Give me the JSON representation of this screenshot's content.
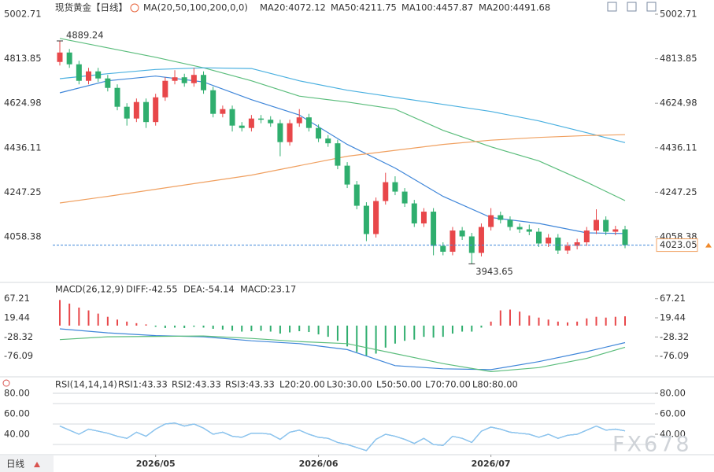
{
  "chart_data": [
    {
      "type": "candlestick",
      "title": "现货黄金",
      "period": "【日线】",
      "indicator": "MA(20,50,100,200,0,0)",
      "up_color": "#e8474a",
      "down_color": "#2fae6e",
      "xlim": [
        0,
        59
      ],
      "xticks": [
        {
          "value": 10,
          "label": "2026/05"
        },
        {
          "value": 27,
          "label": "2026/06"
        },
        {
          "value": 45,
          "label": "2026/07"
        }
      ],
      "ylim": [
        3868.2,
        5046.1
      ],
      "yticks": [
        5002.71,
        4813.85,
        4624.98,
        4436.11,
        4247.25,
        4058.38
      ],
      "open": [
        4800,
        4840,
        4790,
        4720,
        4760,
        4730,
        4690,
        4610,
        4560,
        4630,
        4545,
        4650,
        4720,
        4735,
        4710,
        4745,
        4680,
        4580,
        4600,
        4530,
        4520,
        4560,
        4555,
        4540,
        4460,
        4540,
        4565,
        4520,
        4475,
        4455,
        4360,
        4280,
        4190,
        4070,
        4210,
        4290,
        4250,
        4200,
        4115,
        4165,
        4020,
        3995,
        4085,
        4060,
        3990,
        4100,
        4150,
        4130,
        4100,
        4090,
        4080,
        4030,
        4055,
        4000,
        4020,
        4035,
        4085,
        4130,
        4080,
        4090
      ],
      "high": [
        4889.24,
        4855,
        4805,
        4775,
        4775,
        4745,
        4705,
        4625,
        4645,
        4645,
        4665,
        4735,
        4765,
        4750,
        4775,
        4760,
        4695,
        4615,
        4615,
        4545,
        4575,
        4575,
        4570,
        4555,
        4555,
        4600,
        4580,
        4535,
        4490,
        4470,
        4375,
        4295,
        4205,
        4225,
        4330,
        4315,
        4265,
        4215,
        4180,
        4180,
        4035,
        4100,
        4100,
        4075,
        4115,
        4180,
        4165,
        4145,
        4115,
        4110,
        4095,
        4070,
        4070,
        4035,
        4050,
        4100,
        4175,
        4145,
        4105,
        4105
      ],
      "low": [
        4785,
        4775,
        4705,
        4705,
        4715,
        4675,
        4595,
        4530,
        4545,
        4520,
        4530,
        4635,
        4705,
        4695,
        4695,
        4665,
        4565,
        4565,
        4505,
        4505,
        4505,
        4540,
        4525,
        4400,
        4445,
        4525,
        4505,
        4460,
        4440,
        4345,
        4265,
        4175,
        4040,
        4055,
        4195,
        4235,
        4185,
        4100,
        4100,
        3980,
        3980,
        3980,
        4045,
        3943.65,
        3975,
        4085,
        4115,
        4085,
        4075,
        4065,
        4015,
        4015,
        3985,
        3985,
        4005,
        4020,
        4070,
        4065,
        4065,
        4010
      ],
      "close": [
        4840,
        4790,
        4720,
        4760,
        4730,
        4690,
        4610,
        4560,
        4630,
        4545,
        4650,
        4720,
        4735,
        4710,
        4745,
        4680,
        4580,
        4600,
        4530,
        4520,
        4560,
        4555,
        4540,
        4460,
        4540,
        4565,
        4520,
        4475,
        4455,
        4360,
        4280,
        4190,
        4070,
        4210,
        4290,
        4250,
        4200,
        4115,
        4165,
        4020,
        3995,
        4085,
        4060,
        3990,
        4100,
        4150,
        4130,
        4100,
        4090,
        4080,
        4030,
        4055,
        4000,
        4020,
        4035,
        4085,
        4130,
        4080,
        4090,
        4023.05
      ],
      "series": [
        {
          "name": "MA20:4072.12",
          "color": "#3f86d9",
          "x": [
            0,
            5,
            10,
            15,
            20,
            25,
            30,
            35,
            40,
            45,
            50,
            55,
            59
          ],
          "values": [
            4669,
            4720,
            4740,
            4715,
            4640,
            4575,
            4450,
            4350,
            4230,
            4140,
            4115,
            4075,
            4072.12
          ]
        },
        {
          "name": "MA50:4211.75",
          "color": "#5bbd7c",
          "x": [
            0,
            5,
            10,
            15,
            20,
            25,
            30,
            35,
            40,
            45,
            50,
            55,
            59
          ],
          "values": [
            4900,
            4860,
            4820,
            4775,
            4720,
            4655,
            4630,
            4600,
            4510,
            4440,
            4380,
            4290,
            4211.75
          ]
        },
        {
          "name": "MA100:4457.87",
          "color": "#4ab0e0",
          "x": [
            0,
            5,
            10,
            15,
            20,
            25,
            30,
            35,
            40,
            45,
            50,
            55,
            59
          ],
          "values": [
            4729,
            4750,
            4768,
            4775,
            4772,
            4720,
            4680,
            4650,
            4620,
            4590,
            4550,
            4500,
            4457.87
          ]
        },
        {
          "name": "MA200:4491.68",
          "color": "#f0a060",
          "x": [
            0,
            5,
            10,
            15,
            20,
            25,
            30,
            35,
            40,
            45,
            50,
            55,
            59
          ],
          "values": [
            4202,
            4230,
            4260,
            4290,
            4320,
            4360,
            4400,
            4425,
            4450,
            4468,
            4480,
            4488,
            4491.68
          ]
        }
      ]
    },
    {
      "type": "macd",
      "title": "MACD(26,12,9)",
      "ylim": [
        -126,
        102
      ],
      "yticks": [
        67.21,
        19.44,
        -28.32,
        -76.09
      ],
      "histogram": {
        "name": "MACD:23.17",
        "up_color": "#e8474a",
        "down_color": "#2fae6e",
        "values": [
          64,
          55,
          45,
          38,
          30,
          22,
          15,
          10,
          6,
          3,
          -3,
          -6,
          -5,
          -6,
          -3,
          -5,
          -8,
          -10,
          -13,
          -15,
          -14,
          -13,
          -15,
          -20,
          -17,
          -14,
          -16,
          -22,
          -28,
          -38,
          -52,
          -66,
          -75,
          -70,
          -55,
          -45,
          -38,
          -35,
          -28,
          -30,
          -28,
          -20,
          -15,
          -15,
          -5,
          10,
          38,
          40,
          35,
          25,
          20,
          15,
          10,
          8,
          10,
          18,
          22,
          20,
          22,
          23.17
        ]
      },
      "series": [
        {
          "name": "DIFF:-42.55",
          "color": "#3f86d9",
          "x": [
            0,
            5,
            10,
            15,
            20,
            25,
            30,
            35,
            40,
            45,
            50,
            55,
            59
          ],
          "values": [
            -8,
            -18,
            -25,
            -28,
            -38,
            -45,
            -60,
            -100,
            -108,
            -110,
            -90,
            -65,
            -42.55
          ]
        },
        {
          "name": "DEA:-54.14",
          "color": "#5bbd7c",
          "x": [
            0,
            5,
            10,
            15,
            20,
            25,
            30,
            35,
            40,
            45,
            50,
            55,
            59
          ],
          "values": [
            -35,
            -28,
            -27,
            -26,
            -32,
            -40,
            -45,
            -70,
            -95,
            -115,
            -105,
            -82,
            -54.14
          ]
        }
      ]
    },
    {
      "type": "rsi",
      "title": "RSI(14,14,14)",
      "ylim": [
        20.8,
        93.8
      ],
      "yticks": [
        {
          "value": 80,
          "label": "80.00"
        },
        {
          "value": 60,
          "label": "60.00"
        },
        {
          "value": 40,
          "label": "40.00"
        }
      ],
      "levels": [
        {
          "value": 20,
          "label": "L20:20.00"
        },
        {
          "value": 30,
          "label": "L30:30.00"
        },
        {
          "value": 50,
          "label": "L50:50.00"
        },
        {
          "value": 70,
          "label": "L70:70.00"
        },
        {
          "value": 80,
          "label": "L80:80.00"
        }
      ],
      "series": [
        {
          "name": "RSI1:43.33",
          "color": "#3f86d9",
          "values": [
            48,
            44,
            40,
            45,
            43,
            41,
            38,
            36,
            42,
            38,
            45,
            50,
            51,
            48,
            50,
            46,
            40,
            42,
            38,
            37,
            41,
            41,
            40,
            35,
            42,
            44,
            40,
            37,
            36,
            32,
            30,
            27,
            24,
            35,
            40,
            38,
            35,
            31,
            36,
            30,
            29,
            38,
            36,
            32,
            43,
            47,
            45,
            42,
            41,
            40,
            37,
            40,
            36,
            39,
            40,
            44,
            48,
            44,
            45,
            43.33
          ]
        },
        {
          "name": "RSI2:43.33",
          "color": "#6fb3e6",
          "values": [
            48,
            44,
            40,
            45,
            43,
            41,
            38,
            36,
            42,
            38,
            45,
            50,
            51,
            48,
            50,
            46,
            40,
            42,
            38,
            37,
            41,
            41,
            40,
            35,
            42,
            44,
            40,
            37,
            36,
            32,
            30,
            27,
            24,
            35,
            40,
            38,
            35,
            31,
            36,
            30,
            29,
            38,
            36,
            32,
            43,
            47,
            45,
            42,
            41,
            40,
            37,
            40,
            36,
            39,
            40,
            44,
            48,
            44,
            45,
            43.33
          ]
        },
        {
          "name": "RSI3:43.33",
          "color": "#8ec6ee",
          "values": [
            48,
            44,
            40,
            45,
            43,
            41,
            38,
            36,
            42,
            38,
            45,
            50,
            51,
            48,
            50,
            46,
            40,
            42,
            38,
            37,
            41,
            41,
            40,
            35,
            42,
            44,
            40,
            37,
            36,
            32,
            30,
            27,
            24,
            35,
            40,
            38,
            35,
            31,
            36,
            30,
            29,
            38,
            36,
            32,
            43,
            47,
            45,
            42,
            41,
            40,
            37,
            40,
            36,
            39,
            40,
            44,
            48,
            44,
            45,
            43.33
          ]
        }
      ]
    }
  ],
  "toolbar": {
    "period_button": "日线"
  },
  "watermark": "FX678"
}
